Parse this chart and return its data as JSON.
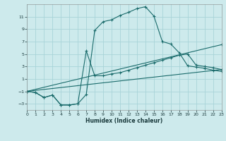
{
  "xlabel": "Humidex (Indice chaleur)",
  "background_color": "#cdeaec",
  "grid_color": "#a8d4d8",
  "line_color": "#1a6b6b",
  "xlim": [
    0,
    23
  ],
  "ylim": [
    -4,
    13
  ],
  "xticks": [
    0,
    1,
    2,
    3,
    4,
    5,
    6,
    7,
    8,
    9,
    10,
    11,
    12,
    13,
    14,
    15,
    16,
    17,
    18,
    19,
    20,
    21,
    22,
    23
  ],
  "yticks": [
    -3,
    -1,
    1,
    3,
    5,
    7,
    9,
    11
  ],
  "curves": [
    {
      "x": [
        0,
        1,
        2,
        3,
        4,
        5,
        6,
        7,
        8,
        9,
        10,
        11,
        12,
        13,
        14,
        15,
        16,
        17,
        18,
        19,
        20,
        21,
        22,
        23
      ],
      "y": [
        -1.0,
        -1.2,
        -2.0,
        -1.6,
        -3.2,
        -3.2,
        -3.0,
        -1.5,
        8.8,
        10.2,
        10.5,
        11.2,
        11.7,
        12.3,
        12.6,
        11.1,
        7.0,
        6.6,
        5.2,
        3.1,
        2.9,
        2.7,
        2.4,
        2.2
      ]
    },
    {
      "x": [
        0,
        1,
        2,
        3,
        4,
        5,
        6,
        7,
        8,
        9,
        10,
        11,
        12,
        13,
        14,
        15,
        16,
        17,
        18,
        19,
        20,
        21,
        22,
        23
      ],
      "y": [
        -1.0,
        -1.2,
        -2.0,
        -1.6,
        -3.2,
        -3.2,
        -3.0,
        5.5,
        1.5,
        1.5,
        1.8,
        2.0,
        2.4,
        2.8,
        3.2,
        3.6,
        4.0,
        4.4,
        4.8,
        5.0,
        3.2,
        3.0,
        2.8,
        2.5
      ]
    },
    {
      "x": [
        0,
        23
      ],
      "y": [
        -1.0,
        6.5
      ]
    },
    {
      "x": [
        0,
        23
      ],
      "y": [
        -1.0,
        2.5
      ]
    }
  ]
}
